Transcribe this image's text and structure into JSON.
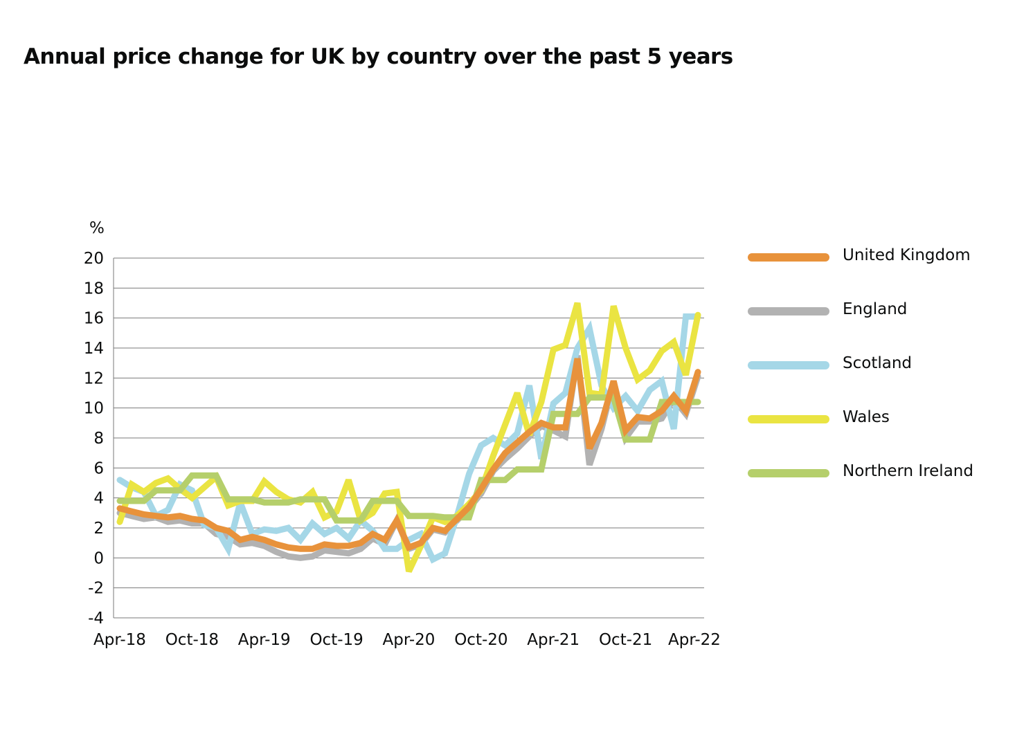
{
  "chart_data": {
    "type": "line",
    "title": "Annual price change for UK by country over the past 5 years",
    "ylabel": "%",
    "xlabel": "",
    "ylim": [
      -4,
      20
    ],
    "yticks": [
      -4,
      -2,
      0,
      2,
      4,
      6,
      8,
      10,
      12,
      14,
      16,
      18,
      20
    ],
    "xtick_labels": [
      "Apr-18",
      "Oct-18",
      "Apr-19",
      "Oct-19",
      "Apr-20",
      "Oct-20",
      "Apr-21",
      "Oct-21",
      "Apr-22"
    ],
    "grid": true,
    "legend_position": "right",
    "x": [
      "Apr-18",
      "May-18",
      "Jun-18",
      "Jul-18",
      "Aug-18",
      "Sep-18",
      "Oct-18",
      "Nov-18",
      "Dec-18",
      "Jan-19",
      "Feb-19",
      "Mar-19",
      "Apr-19",
      "May-19",
      "Jun-19",
      "Jul-19",
      "Aug-19",
      "Sep-19",
      "Oct-19",
      "Nov-19",
      "Dec-19",
      "Jan-20",
      "Feb-20",
      "Mar-20",
      "Apr-20",
      "May-20",
      "Jun-20",
      "Jul-20",
      "Aug-20",
      "Sep-20",
      "Oct-20",
      "Nov-20",
      "Dec-20",
      "Jan-21",
      "Feb-21",
      "Mar-21",
      "Apr-21",
      "May-21",
      "Jun-21",
      "Jul-21",
      "Aug-21",
      "Sep-21",
      "Oct-21",
      "Nov-21",
      "Dec-21",
      "Jan-22",
      "Feb-22",
      "Mar-22",
      "Apr-22"
    ],
    "series": [
      {
        "name": "England",
        "color": "#b2b2b2",
        "values": [
          3.0,
          2.8,
          2.6,
          2.7,
          2.4,
          2.5,
          2.3,
          2.3,
          1.6,
          1.4,
          0.9,
          1.0,
          0.8,
          0.4,
          0.1,
          0.0,
          0.1,
          0.5,
          0.4,
          0.3,
          0.6,
          1.3,
          0.9,
          2.5,
          0.6,
          0.9,
          1.9,
          1.7,
          2.5,
          3.3,
          4.3,
          5.8,
          6.6,
          7.3,
          8.1,
          8.8,
          8.5,
          8.1,
          13.5,
          6.2,
          8.6,
          11.8,
          8.0,
          9.1,
          9.1,
          9.3,
          10.6,
          9.6,
          12.1
        ]
      },
      {
        "name": "Scotland",
        "color": "#a5d7e7",
        "values": [
          5.2,
          4.7,
          4.4,
          2.8,
          3.2,
          4.9,
          4.5,
          2.2,
          2.0,
          0.6,
          3.7,
          1.6,
          1.9,
          1.8,
          2.0,
          1.2,
          2.3,
          1.6,
          2.0,
          1.3,
          2.5,
          1.8,
          0.6,
          0.6,
          1.2,
          1.6,
          -0.1,
          0.3,
          2.8,
          5.6,
          7.5,
          8.0,
          7.5,
          8.3,
          11.5,
          6.6,
          10.3,
          11.0,
          14.0,
          15.3,
          11.5,
          10.0,
          10.8,
          9.8,
          11.2,
          11.8,
          8.6,
          16.1,
          16.1
        ]
      },
      {
        "name": "Wales",
        "color": "#eae442",
        "values": [
          2.4,
          4.9,
          4.4,
          5.0,
          5.3,
          4.6,
          4.0,
          4.7,
          5.4,
          3.5,
          3.8,
          3.8,
          5.1,
          4.4,
          3.9,
          3.7,
          4.4,
          2.7,
          3.1,
          5.2,
          2.5,
          3.0,
          4.3,
          4.4,
          -0.9,
          0.8,
          2.7,
          2.4,
          2.8,
          3.6,
          4.5,
          6.8,
          8.9,
          11.0,
          8.2,
          10.4,
          13.9,
          14.2,
          17.0,
          11.0,
          10.9,
          16.8,
          14.0,
          11.9,
          12.5,
          13.8,
          14.4,
          12.2,
          16.2
        ]
      },
      {
        "name": "Northern Ireland",
        "color": "#b5cf6b",
        "values": [
          3.8,
          3.8,
          3.8,
          4.5,
          4.5,
          4.5,
          5.5,
          5.5,
          5.5,
          3.9,
          3.9,
          3.9,
          3.7,
          3.7,
          3.7,
          3.9,
          3.9,
          3.9,
          2.5,
          2.5,
          2.5,
          3.8,
          3.8,
          3.8,
          2.8,
          2.8,
          2.8,
          2.7,
          2.7,
          2.7,
          5.2,
          5.2,
          5.2,
          5.9,
          5.9,
          5.9,
          9.6,
          9.6,
          9.6,
          10.7,
          10.7,
          10.7,
          7.9,
          7.9,
          7.9,
          10.4,
          10.4,
          10.4,
          10.4
        ]
      },
      {
        "name": "United Kingdom",
        "color": "#e8923b",
        "values": [
          3.3,
          3.1,
          2.9,
          2.8,
          2.7,
          2.8,
          2.6,
          2.5,
          2.0,
          1.8,
          1.2,
          1.4,
          1.2,
          0.9,
          0.7,
          0.6,
          0.6,
          0.9,
          0.8,
          0.8,
          1.0,
          1.6,
          1.2,
          2.5,
          0.7,
          1.0,
          2.0,
          1.8,
          2.6,
          3.4,
          4.6,
          5.9,
          7.0,
          7.7,
          8.4,
          9.0,
          8.7,
          8.7,
          13.3,
          7.3,
          9.0,
          11.8,
          8.5,
          9.4,
          9.3,
          9.8,
          10.8,
          9.8,
          12.4
        ]
      }
    ],
    "legend_order": [
      "United Kingdom",
      "England",
      "Scotland",
      "Wales",
      "Northern Ireland"
    ]
  }
}
